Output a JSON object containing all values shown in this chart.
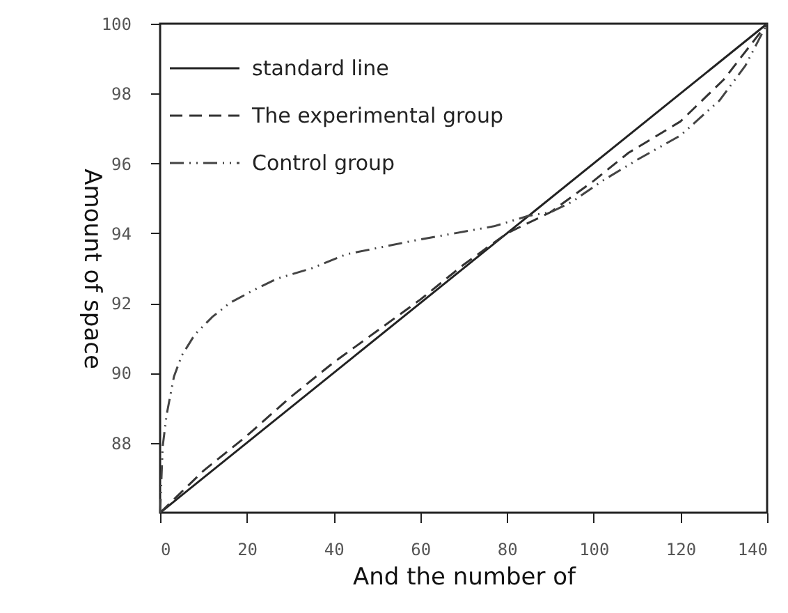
{
  "chart_data": {
    "type": "line",
    "xlabel": "And the number of",
    "ylabel": "Amount of space",
    "xlim": [
      0,
      140
    ],
    "ylim": [
      86,
      100
    ],
    "xticks": [
      0,
      20,
      40,
      60,
      80,
      100,
      120,
      140
    ],
    "yticks": [
      88,
      90,
      92,
      94,
      96,
      98,
      100
    ],
    "grid": false,
    "legend": "top left",
    "marker": "none",
    "series": [
      {
        "name": "standard line",
        "color": "#222222",
        "line_style": "solid",
        "x": [
          0,
          140
        ],
        "values": [
          86,
          100
        ]
      },
      {
        "name": "The experimental group",
        "color": "#333333",
        "line_style": "dashed",
        "x": [
          0,
          10,
          20,
          30,
          40,
          50,
          60,
          70,
          80,
          90,
          100,
          108,
          120,
          130,
          140
        ],
        "values": [
          86,
          87.2,
          88.2,
          89.3,
          90.3,
          91.2,
          92.1,
          93.1,
          94.0,
          94.6,
          95.5,
          96.3,
          97.2,
          98.4,
          100
        ]
      },
      {
        "name": "Control group",
        "color": "#444444",
        "line_style": "dashdot",
        "x": [
          0,
          0.6,
          1.5,
          3.2,
          5,
          8,
          12,
          16,
          22,
          27,
          35,
          43,
          51,
          59,
          68,
          77,
          85,
          90,
          95,
          102,
          110,
          120,
          129,
          135,
          140
        ],
        "values": [
          86,
          87.9,
          88.8,
          89.9,
          90.5,
          91.1,
          91.6,
          92.0,
          92.4,
          92.7,
          93.0,
          93.4,
          93.6,
          93.8,
          94.0,
          94.2,
          94.5,
          94.6,
          94.9,
          95.5,
          96.1,
          96.8,
          97.8,
          98.8,
          100
        ]
      }
    ]
  }
}
